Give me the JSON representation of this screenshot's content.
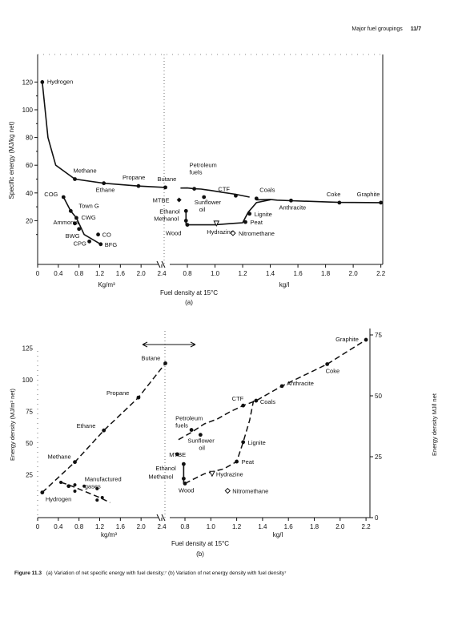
{
  "header": {
    "section": "Major fuel groupings",
    "page": "11/7"
  },
  "caption": {
    "label": "Figure 11.3",
    "text": "(a)  Variation of net specific energy with fuel density;⁷ (b) Variation of net energy density with fuel density⁷"
  },
  "chart_data": [
    {
      "id": "a",
      "type": "line",
      "panel_label": "(a)",
      "ylabel": "Specific energy (MJ/kg net)",
      "xlabel": "Fuel density at 15°C",
      "xunit_left": "Kg/m³",
      "xunit_right": "kg/l",
      "ylim": [
        0,
        125
      ],
      "yticks": [
        "20",
        "40",
        "60",
        "80",
        "100",
        "120"
      ],
      "xticks_left": [
        "0",
        "0.4",
        "0.8",
        "1.2",
        "1.6",
        "2.0",
        "2.4"
      ],
      "xticks_right": [
        "0.8",
        "1.0",
        "1.2",
        "1.4",
        "1.6",
        "1.8",
        "2.0",
        "2.2"
      ],
      "series": [
        {
          "points": [
            [
              0.09,
              120
            ],
            [
              0.72,
              50
            ],
            [
              1.28,
              47
            ],
            [
              1.95,
              45
            ],
            [
              2.47,
              44
            ],
            [
              0.7,
              43.5
            ],
            [
              0.8,
              43.6
            ],
            [
              0.85,
              43
            ],
            [
              0.9,
              42.8
            ],
            [
              0.93,
              42.5
            ],
            [
              0.97,
              41.8
            ],
            [
              1.0,
              41.3
            ],
            [
              1.05,
              40.5
            ],
            [
              1.15,
              39
            ],
            [
              1.25,
              37
            ],
            [
              1.4,
              35
            ],
            [
              1.45,
              34.8
            ],
            [
              1.55,
              34.4
            ],
            [
              1.9,
              33
            ],
            [
              2.2,
              33
            ]
          ],
          "style": "solid"
        },
        {
          "points": [
            [
              0.5,
              37
            ],
            [
              0.64,
              27
            ],
            [
              0.9,
              9
            ],
            [
              1.22,
              3
            ]
          ],
          "style": "solid"
        },
        {
          "points": [
            [
              0.75,
              28
            ],
            [
              0.75,
              17
            ],
            [
              0.97,
              17
            ],
            [
              1.1,
              18
            ],
            [
              1.2,
              18
            ],
            [
              1.24,
              26
            ],
            [
              1.28,
              32
            ],
            [
              1.32,
              34.5
            ]
          ],
          "style": "solid"
        }
      ],
      "points": [
        {
          "label": "Hydrogen",
          "density": 0.09,
          "value": 120,
          "marker": "filled"
        },
        {
          "label": "Methane",
          "density": 0.72,
          "value": 50,
          "marker": "filled"
        },
        {
          "label": "Ethane",
          "density": 1.28,
          "value": 47,
          "marker": "filled"
        },
        {
          "label": "Propane",
          "density": 1.95,
          "value": 45,
          "marker": "filled"
        },
        {
          "label": "Butane",
          "density": 2.47,
          "value": 44,
          "marker": "filled"
        },
        {
          "label": "COG",
          "density": 0.5,
          "value": 37,
          "marker": "filled"
        },
        {
          "label": "Town G",
          "density": 0.64,
          "value": 27,
          "marker": "filled"
        },
        {
          "label": "CWG",
          "density": 0.75,
          "value": 22,
          "marker": "filled"
        },
        {
          "label": "Ammonia",
          "density": 0.72,
          "value": 18,
          "marker": "filled"
        },
        {
          "label": "BWG",
          "density": 0.8,
          "value": 14,
          "marker": "filled"
        },
        {
          "label": "CO",
          "density": 1.17,
          "value": 10,
          "marker": "filled"
        },
        {
          "label": "CPG",
          "density": 1.0,
          "value": 5,
          "marker": "filled"
        },
        {
          "label": "BFG",
          "density": 1.22,
          "value": 3,
          "marker": "filled"
        },
        {
          "label": "Petroleum fuels",
          "density": 0.85,
          "value": 43,
          "marker": "filled"
        },
        {
          "label": "MTBE",
          "density": 0.74,
          "value": 35,
          "marker": "filled"
        },
        {
          "label": "Sunflower oil",
          "density": 0.92,
          "value": 37,
          "marker": "filled"
        },
        {
          "label": "Ethanol",
          "density": 0.79,
          "value": 27,
          "marker": "filled"
        },
        {
          "label": "Methanol",
          "density": 0.79,
          "value": 20,
          "marker": "filled"
        },
        {
          "label": "Wood",
          "density": 0.8,
          "value": 17,
          "marker": "filled"
        },
        {
          "label": "Hydrazine",
          "density": 1.01,
          "value": 18,
          "marker": "open"
        },
        {
          "label": "Nitromethane",
          "density": 1.13,
          "value": 11,
          "marker": "open"
        },
        {
          "label": "CTF",
          "density": 1.15,
          "value": 38,
          "marker": "filled"
        },
        {
          "label": "Coals",
          "density": 1.3,
          "value": 36,
          "marker": "filled"
        },
        {
          "label": "Anthracite",
          "density": 1.55,
          "value": 34.5,
          "marker": "filled"
        },
        {
          "label": "Coke",
          "density": 1.9,
          "value": 33,
          "marker": "filled"
        },
        {
          "label": "Graphite",
          "density": 2.2,
          "value": 33,
          "marker": "filled"
        },
        {
          "label": "Lignite",
          "density": 1.25,
          "value": 25,
          "marker": "filled"
        },
        {
          "label": "Peat",
          "density": 1.22,
          "value": 19,
          "marker": "filled"
        }
      ]
    },
    {
      "id": "b",
      "type": "line",
      "panel_label": "(b)",
      "ylabel_left": "Energy density (MJ/m³ net)",
      "ylabel_right": "Energy density MJ/l net",
      "xlabel": "Fuel density at 15°C",
      "xunit_left": "kg/m³",
      "xunit_right": "kg/l",
      "ylim_left": [
        0,
        145
      ],
      "ylim_right": [
        0,
        75
      ],
      "yticks_left": [
        "25",
        "50",
        "75",
        "100",
        "125"
      ],
      "yticks_right": [
        "0",
        "25",
        "50",
        "75"
      ],
      "xticks_left": [
        "0",
        "0.4",
        "0.8",
        "1.2",
        "1.6",
        "2.0",
        "2.4"
      ],
      "xticks_right": [
        "0.8",
        "1.0",
        "1.2",
        "1.4",
        "1.6",
        "1.8",
        "2.0",
        "2.2"
      ],
      "points": [
        {
          "label": "Hydrogen",
          "density": 0.09,
          "value": 11,
          "marker": "filled"
        },
        {
          "label": "Methane",
          "density": 0.72,
          "value": 35,
          "marker": "filled"
        },
        {
          "label": "Ethane",
          "density": 1.28,
          "value": 60,
          "marker": "filled"
        },
        {
          "label": "Propane",
          "density": 1.95,
          "value": 86,
          "marker": "filled"
        },
        {
          "label": "Butane",
          "density": 2.47,
          "value": 113,
          "marker": "filled"
        },
        {
          "label": "Manufactured gases",
          "density": 0.6,
          "value": 16,
          "marker": "filled"
        },
        {
          "label": "Petroleum fuels",
          "density": 0.85,
          "value": 36,
          "marker": "filled"
        },
        {
          "label": "Sunflower oil",
          "density": 0.92,
          "value": 34,
          "marker": "filled"
        },
        {
          "label": "MTBE",
          "density": 0.74,
          "value": 26,
          "marker": "filled"
        },
        {
          "label": "Ethanol",
          "density": 0.79,
          "value": 22,
          "marker": "filled"
        },
        {
          "label": "Methanol",
          "density": 0.79,
          "value": 16,
          "marker": "filled"
        },
        {
          "label": "Wood",
          "density": 0.8,
          "value": 14,
          "marker": "filled"
        },
        {
          "label": "Hydrazine",
          "density": 1.01,
          "value": 18,
          "marker": "open"
        },
        {
          "label": "Nitromethane",
          "density": 1.13,
          "value": 11,
          "marker": "open"
        },
        {
          "label": "CTF",
          "density": 1.25,
          "value": 46,
          "marker": "filled"
        },
        {
          "label": "Coals",
          "density": 1.35,
          "value": 48,
          "marker": "filled"
        },
        {
          "label": "Lignite",
          "density": 1.25,
          "value": 31,
          "marker": "filled"
        },
        {
          "label": "Peat",
          "density": 1.2,
          "value": 23,
          "marker": "filled"
        },
        {
          "label": "Anthracite",
          "density": 1.55,
          "value": 54,
          "marker": "filled"
        },
        {
          "label": "Coke",
          "density": 1.9,
          "value": 63,
          "marker": "filled"
        },
        {
          "label": "Graphite",
          "density": 2.2,
          "value": 73,
          "marker": "filled"
        }
      ]
    }
  ]
}
